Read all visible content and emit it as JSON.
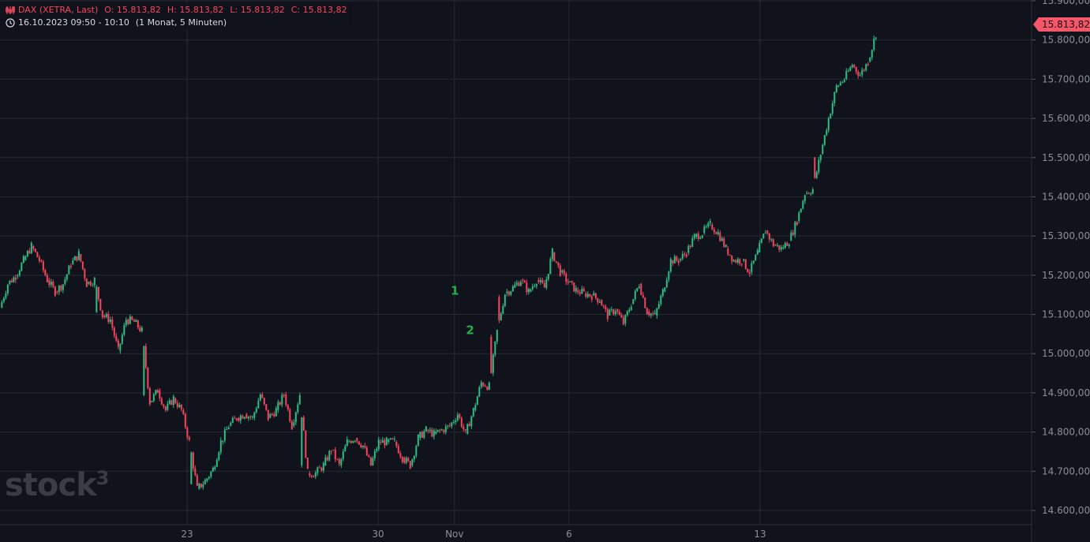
{
  "header": {
    "symbol": "DAX (XETRA, Last)",
    "open": "O: 15.813,82",
    "high": "H: 15.813,82",
    "low": "L: 15.813,82",
    "close": "C: 15.813,82",
    "timerange": "16.10.2023 09:50 - 10:10",
    "period": "(1 Monat, 5 Minuten)",
    "icons": [
      "candlestick-icon",
      "clock-icon"
    ]
  },
  "watermark": "stock³",
  "current_price_label": "15.813,82",
  "colors": {
    "up": "#2ebd85",
    "down": "#f6465d",
    "background": "#10131b",
    "grid": "#262a33",
    "tag": "#f6566a",
    "marker": "#22b04a"
  },
  "chart_data": {
    "type": "candlestick",
    "title": "DAX (XETRA, Last)",
    "xlabel": "",
    "ylabel": "",
    "ylim": [
      14580,
      15920
    ],
    "yticks": [
      "15.900,00",
      "15.800,00",
      "15.700,00",
      "15.600,00",
      "15.500,00",
      "15.400,00",
      "15.300,00",
      "15.200,00",
      "15.100,00",
      "15.000,00",
      "14.900,00",
      "14.800,00",
      "14.700,00",
      "14.600,00"
    ],
    "ytick_values": [
      15900,
      15800,
      15700,
      15600,
      15500,
      15400,
      15300,
      15200,
      15100,
      15000,
      14900,
      14800,
      14700,
      14600
    ],
    "xticks": [
      {
        "label": "23",
        "day": 0
      },
      {
        "label": "30",
        "day": 5
      },
      {
        "label": "Nov",
        "day": 7
      },
      {
        "label": "6",
        "day": 10
      },
      {
        "label": "13",
        "day": 15
      }
    ],
    "xlim_days": [
      -4.9,
      22.1
    ],
    "start_day": -4.9,
    "step_days": 0.2066,
    "closes": [
      15117,
      15178,
      15198,
      15238,
      15274,
      15238,
      15188,
      15158,
      15178,
      15228,
      15254,
      15178,
      15188,
      15097,
      15087,
      15007,
      15087,
      15081,
      15057,
      14876,
      14906,
      14856,
      14886,
      14856,
      14775,
      14655,
      14675,
      14705,
      14775,
      14816,
      14836,
      14846,
      14836,
      14896,
      14836,
      14856,
      14896,
      14816,
      14896,
      14695,
      14695,
      14715,
      14755,
      14715,
      14775,
      14785,
      14765,
      14715,
      14775,
      14775,
      14775,
      14735,
      14715,
      14785,
      14805,
      14795,
      14805,
      14815,
      14846,
      14795,
      14856,
      14926,
      14916,
      15057,
      15154,
      15168,
      15188,
      15158,
      15188,
      15168,
      15258,
      15208,
      15182,
      15162,
      15154,
      15148,
      15137,
      15097,
      15113,
      15077,
      15127,
      15178,
      15107,
      15097,
      15158,
      15238,
      15238,
      15258,
      15298,
      15308,
      15329,
      15308,
      15268,
      15238,
      15238,
      15208,
      15258,
      15314,
      15278,
      15268,
      15288,
      15339,
      15409,
      15419,
      15510,
      15600,
      15681,
      15701,
      15737,
      15711,
      15745,
      15817
    ],
    "annotations": [
      {
        "text": "1",
        "day": 6.9,
        "price": 15150
      },
      {
        "text": "2",
        "day": 7.3,
        "price": 15050
      }
    ],
    "last_price": 15813.82,
    "grid": true
  }
}
